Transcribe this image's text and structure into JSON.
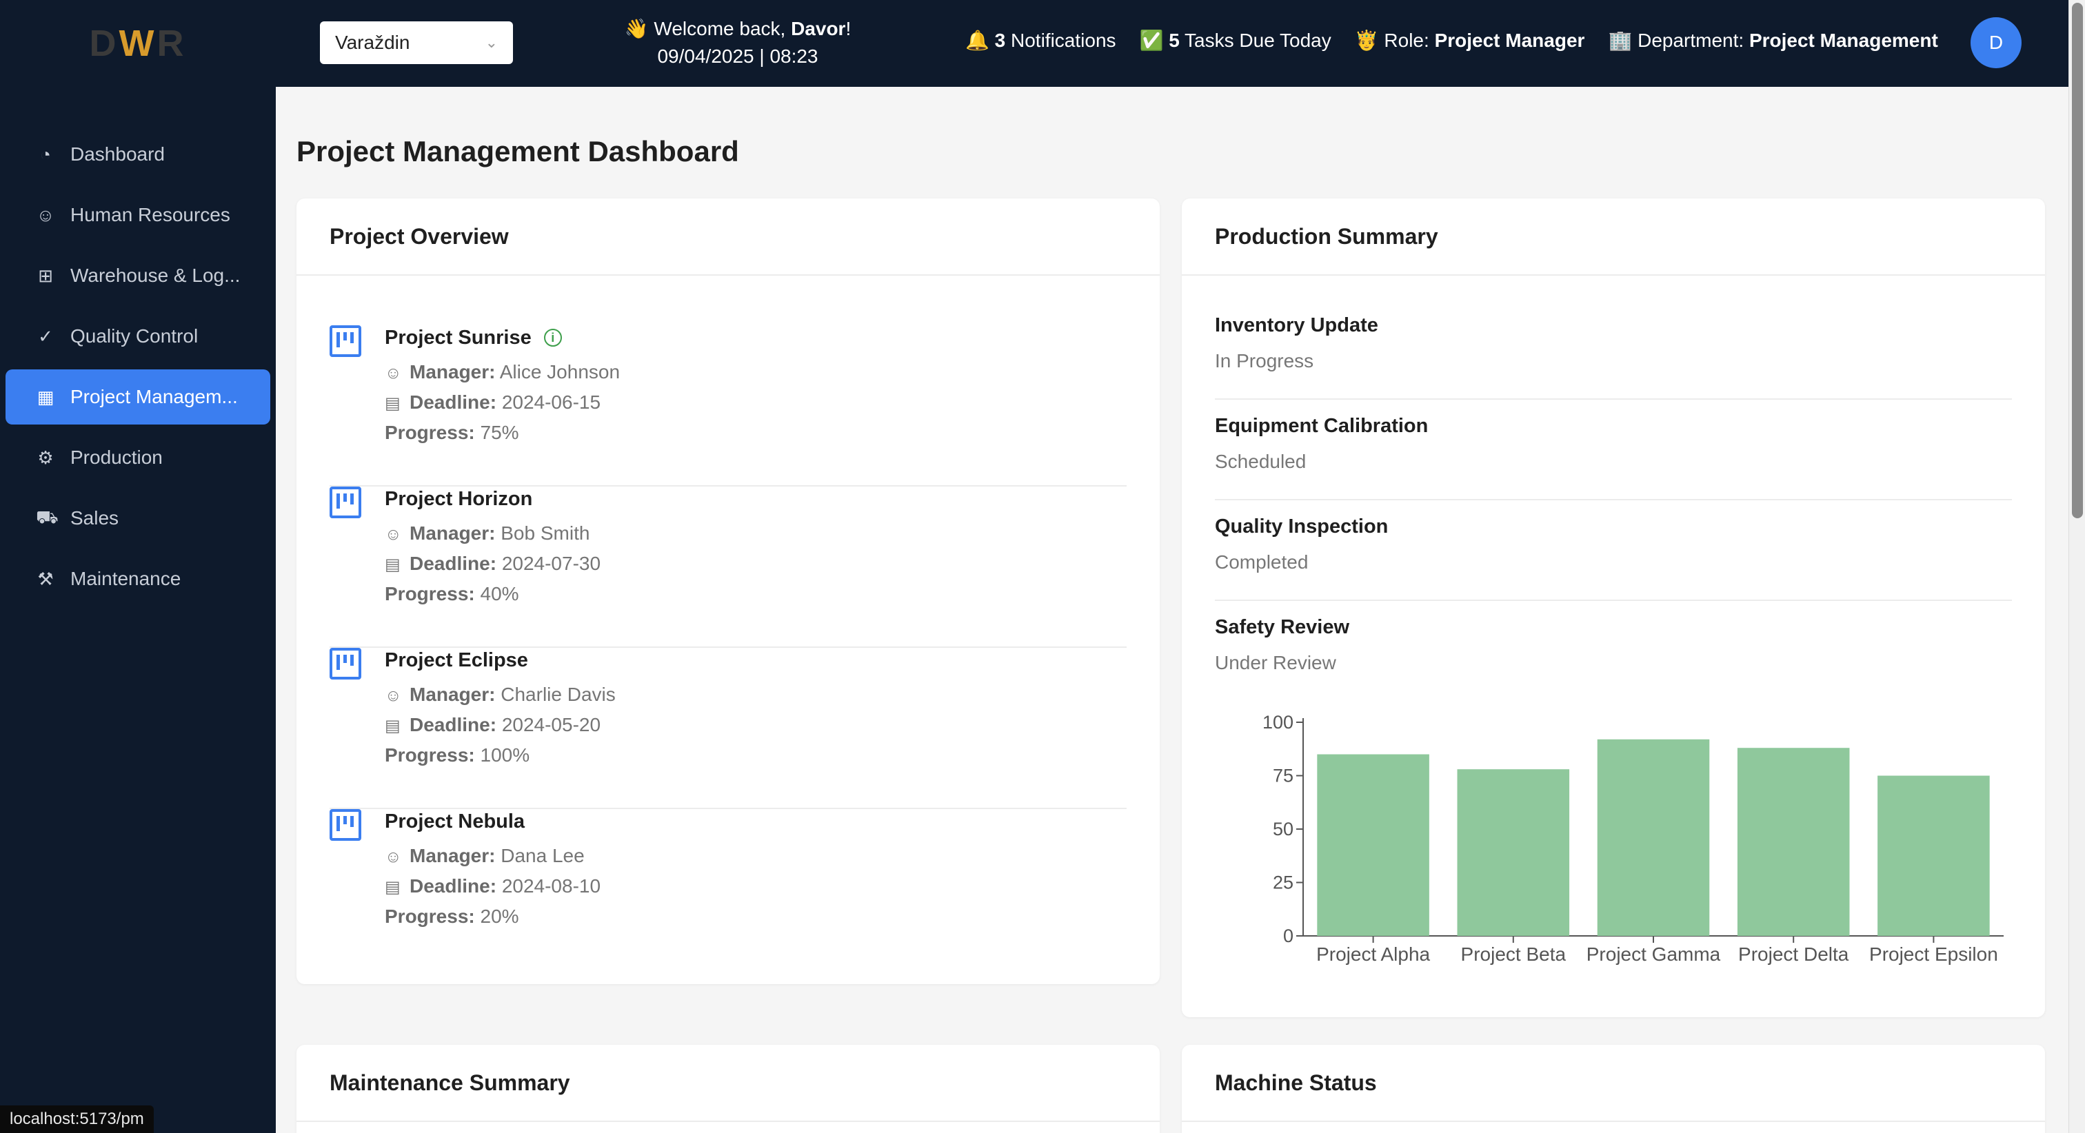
{
  "header": {
    "logo_left": "D",
    "logo_mid": "W",
    "logo_right": "R",
    "location": "Varaždin",
    "welcome_prefix": "👋 Welcome back, ",
    "user_name": "Davor",
    "welcome_suffix": "!",
    "datetime": "09/04/2025 | 08:23",
    "notifications_icon": "🔔",
    "notifications_count": "3",
    "notifications_label": "Notifications",
    "tasks_icon": "✅",
    "tasks_count": "5",
    "tasks_label": "Tasks Due Today",
    "role_icon": "🤴",
    "role_label": "Role:",
    "role_value": "Project Manager",
    "dept_icon": "🏢",
    "dept_label": "Department:",
    "dept_value": "Project Management",
    "avatar_initial": "D"
  },
  "sidebar": {
    "items": [
      {
        "label": "Dashboard",
        "icon": "dashboard-icon"
      },
      {
        "label": "Human Resources",
        "icon": "user-icon"
      },
      {
        "label": "Warehouse & Log...",
        "icon": "grid-icon"
      },
      {
        "label": "Quality Control",
        "icon": "check-circle-icon"
      },
      {
        "label": "Project Managem...",
        "icon": "project-icon"
      },
      {
        "label": "Production",
        "icon": "gear-icon"
      },
      {
        "label": "Sales",
        "icon": "cart-icon"
      },
      {
        "label": "Maintenance",
        "icon": "wrench-icon"
      }
    ],
    "active_index": 4
  },
  "main": {
    "page_title": "Project Management Dashboard",
    "overview_title": "Project Overview",
    "manager_label": "Manager:",
    "deadline_label": "Deadline:",
    "progress_label": "Progress:",
    "projects": [
      {
        "name": "Project Sunrise",
        "manager": "Alice Johnson",
        "deadline": "2024-06-15",
        "progress": "75%"
      },
      {
        "name": "Project Horizon",
        "manager": "Bob Smith",
        "deadline": "2024-07-30",
        "progress": "40%"
      },
      {
        "name": "Project Eclipse",
        "manager": "Charlie Davis",
        "deadline": "2024-05-20",
        "progress": "100%"
      },
      {
        "name": "Project Nebula",
        "manager": "Dana Lee",
        "deadline": "2024-08-10",
        "progress": "20%"
      }
    ],
    "production_title": "Production Summary",
    "production_items": [
      {
        "title": "Inventory Update",
        "status": "In Progress"
      },
      {
        "title": "Equipment Calibration",
        "status": "Scheduled"
      },
      {
        "title": "Quality Inspection",
        "status": "Completed"
      },
      {
        "title": "Safety Review",
        "status": "Under Review"
      }
    ],
    "maintenance_title": "Maintenance Summary",
    "machine_title": "Machine Status"
  },
  "status_bar": {
    "url": "localhost:5173/pm"
  },
  "colors": {
    "sidebar_bg": "#0e1a2c",
    "accent": "#3b7ef0",
    "bar_fill": "#8fc89c"
  },
  "chart_data": {
    "type": "bar",
    "categories": [
      "Project Alpha",
      "Project Beta",
      "Project Gamma",
      "Project Delta",
      "Project Epsilon"
    ],
    "values": [
      85,
      78,
      92,
      88,
      75
    ],
    "ylim": [
      0,
      100
    ],
    "yticks": [
      0,
      25,
      50,
      75,
      100
    ],
    "grid": false,
    "legend": "none"
  }
}
